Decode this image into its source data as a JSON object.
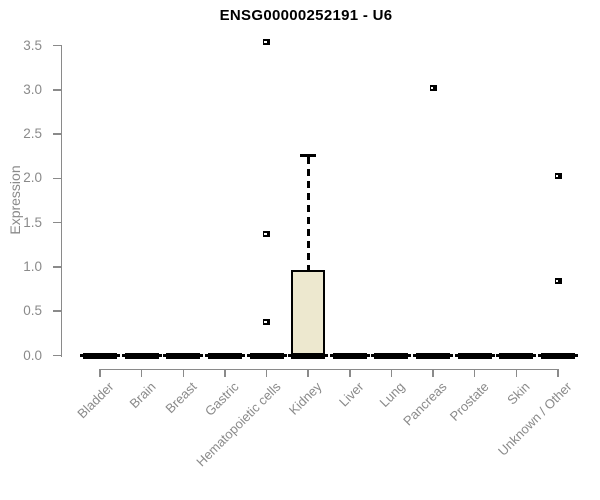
{
  "title": "ENSG00000252191 - U6",
  "y_axis": {
    "label": "Expression"
  },
  "colors": {
    "background": "#ffffff",
    "title": "#000000",
    "axis": "#8a8a8a",
    "tick_label": "#8a8a8a",
    "box_fill": "#EDE8CF",
    "box_border": "#000000",
    "median": "#000000",
    "outlier": "#000000"
  },
  "chart_data": {
    "type": "boxplot",
    "title": "ENSG00000252191 - U6",
    "xlabel": "",
    "ylabel": "Expression",
    "ylim": [
      0,
      3.5
    ],
    "yticks": [
      0.0,
      0.5,
      1.0,
      1.5,
      2.0,
      2.5,
      3.0,
      3.5
    ],
    "grid": false,
    "legend": false,
    "categories": [
      "Bladder",
      "Brain",
      "Breast",
      "Gastric",
      "Hematopoietic cells",
      "Kidney",
      "Liver",
      "Lung",
      "Pancreas",
      "Prostate",
      "Skin",
      "Unknown / Other"
    ],
    "boxes": [
      {
        "category": "Bladder",
        "whisker_low": 0,
        "q1": 0,
        "median": 0,
        "q3": 0,
        "whisker_high": 0,
        "outliers": []
      },
      {
        "category": "Brain",
        "whisker_low": 0,
        "q1": 0,
        "median": 0,
        "q3": 0,
        "whisker_high": 0,
        "outliers": []
      },
      {
        "category": "Breast",
        "whisker_low": 0,
        "q1": 0,
        "median": 0,
        "q3": 0,
        "whisker_high": 0,
        "outliers": []
      },
      {
        "category": "Gastric",
        "whisker_low": 0,
        "q1": 0,
        "median": 0,
        "q3": 0,
        "whisker_high": 0,
        "outliers": []
      },
      {
        "category": "Hematopoietic cells",
        "whisker_low": 0,
        "q1": 0,
        "median": 0,
        "q3": 0,
        "whisker_high": 0,
        "outliers": [
          0.38,
          1.37,
          3.54
        ]
      },
      {
        "category": "Kidney",
        "whisker_low": 0,
        "q1": 0,
        "median": 0,
        "q3": 0.97,
        "whisker_high": 2.26,
        "outliers": []
      },
      {
        "category": "Liver",
        "whisker_low": 0,
        "q1": 0,
        "median": 0,
        "q3": 0,
        "whisker_high": 0,
        "outliers": []
      },
      {
        "category": "Lung",
        "whisker_low": 0,
        "q1": 0,
        "median": 0,
        "q3": 0,
        "whisker_high": 0,
        "outliers": []
      },
      {
        "category": "Pancreas",
        "whisker_low": 0,
        "q1": 0,
        "median": 0,
        "q3": 0,
        "whisker_high": 0,
        "outliers": [
          3.02
        ]
      },
      {
        "category": "Prostate",
        "whisker_low": 0,
        "q1": 0,
        "median": 0,
        "q3": 0,
        "whisker_high": 0,
        "outliers": []
      },
      {
        "category": "Skin",
        "whisker_low": 0,
        "q1": 0,
        "median": 0,
        "q3": 0,
        "whisker_high": 0,
        "outliers": []
      },
      {
        "category": "Unknown / Other",
        "whisker_low": 0,
        "q1": 0,
        "median": 0,
        "q3": 0,
        "whisker_high": 0,
        "outliers": [
          0.84,
          2.03
        ]
      }
    ]
  }
}
